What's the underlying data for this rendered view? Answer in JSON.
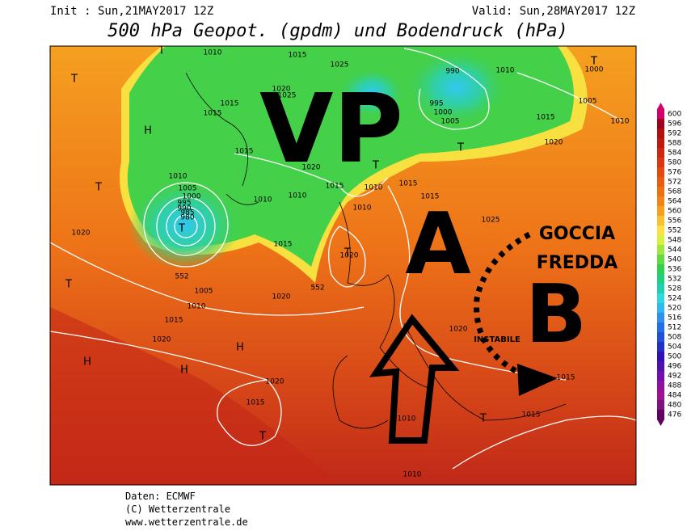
{
  "header": {
    "init": "Init : Sun,21MAY2017 12Z",
    "valid": "Valid: Sun,28MAY2017 12Z",
    "title": "500 hPa Geopot. (gpdm) und Bodendruck (hPa)"
  },
  "annotations": {
    "vp": "VP",
    "a": "A",
    "b": "B",
    "goccia": "GOCCIA",
    "fredda": "FREDDA",
    "instabile": "INSTABILE"
  },
  "isobar_labels": [
    "1010",
    "1015",
    "1025",
    "990",
    "1010",
    "1000",
    "1020",
    "1025",
    "1015",
    "1015",
    "995",
    "1000",
    "1005",
    "1005",
    "1010",
    "1015",
    "1020",
    "1015",
    "1020",
    "1010",
    "1005",
    "1000",
    "995",
    "990",
    "985",
    "980",
    "1015",
    "1010",
    "1015",
    "1015",
    "1010",
    "1010",
    "1010",
    "1020",
    "1025",
    "1015",
    "1020",
    "552",
    "1005",
    "552",
    "1020",
    "1010",
    "1015",
    "1020",
    "1020",
    "1020",
    "1015",
    "1010",
    "1015",
    "1015",
    "1010"
  ],
  "pressure_centers": [
    "T",
    "T",
    "H",
    "T",
    "T",
    "T",
    "H",
    "H",
    "H",
    "T",
    "T",
    "T",
    "T",
    "T",
    "T"
  ],
  "colorbar": {
    "ticks": [
      600,
      596,
      592,
      588,
      584,
      580,
      576,
      572,
      568,
      564,
      560,
      556,
      552,
      548,
      544,
      540,
      536,
      532,
      528,
      524,
      520,
      516,
      512,
      508,
      504,
      500,
      496,
      492,
      488,
      484,
      480,
      476
    ],
    "colors": [
      "#d4006a",
      "#a00020",
      "#b01010",
      "#c01a10",
      "#d02510",
      "#dc3510",
      "#e44a10",
      "#ea5c10",
      "#ef7010",
      "#f38418",
      "#f7a020",
      "#fbc030",
      "#ffe040",
      "#d8f040",
      "#a0e840",
      "#60dc40",
      "#30d050",
      "#20d080",
      "#20d0b0",
      "#30d8e0",
      "#30b8f0",
      "#3090f0",
      "#2070e8",
      "#2050d8",
      "#2030c8",
      "#3010b8",
      "#5010b0",
      "#7010b0",
      "#9010a0",
      "#a01090",
      "#801080",
      "#600060"
    ]
  },
  "footer": {
    "source": "Daten: ECMWF",
    "copyright": "(C) Wetterzentrale",
    "url": "www.wetterzentrale.de"
  }
}
